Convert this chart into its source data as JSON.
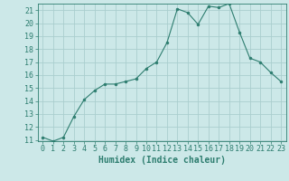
{
  "x": [
    0,
    1,
    2,
    3,
    4,
    5,
    6,
    7,
    8,
    9,
    10,
    11,
    12,
    13,
    14,
    15,
    16,
    17,
    18,
    19,
    20,
    21,
    22,
    23
  ],
  "y": [
    11.2,
    10.9,
    11.2,
    12.8,
    14.1,
    14.8,
    15.3,
    15.3,
    15.5,
    15.7,
    16.5,
    17.0,
    18.5,
    21.1,
    20.8,
    19.9,
    21.3,
    21.2,
    21.5,
    19.3,
    17.3,
    17.0,
    16.2,
    15.5
  ],
  "line_color": "#2d7d6f",
  "marker": "o",
  "marker_size": 2,
  "bg_color": "#cce8e8",
  "grid_color": "#aacece",
  "xlabel": "Humidex (Indice chaleur)",
  "ylim_min": 11,
  "ylim_max": 22,
  "xlim_min": -0.5,
  "xlim_max": 23.5,
  "yticks": [
    11,
    12,
    13,
    14,
    15,
    16,
    17,
    18,
    19,
    20,
    21
  ],
  "xticks": [
    0,
    1,
    2,
    3,
    4,
    5,
    6,
    7,
    8,
    9,
    10,
    11,
    12,
    13,
    14,
    15,
    16,
    17,
    18,
    19,
    20,
    21,
    22,
    23
  ],
  "tick_color": "#2d7d6f",
  "label_color": "#2d7d6f",
  "font_size": 6,
  "xlabel_fontsize": 7
}
